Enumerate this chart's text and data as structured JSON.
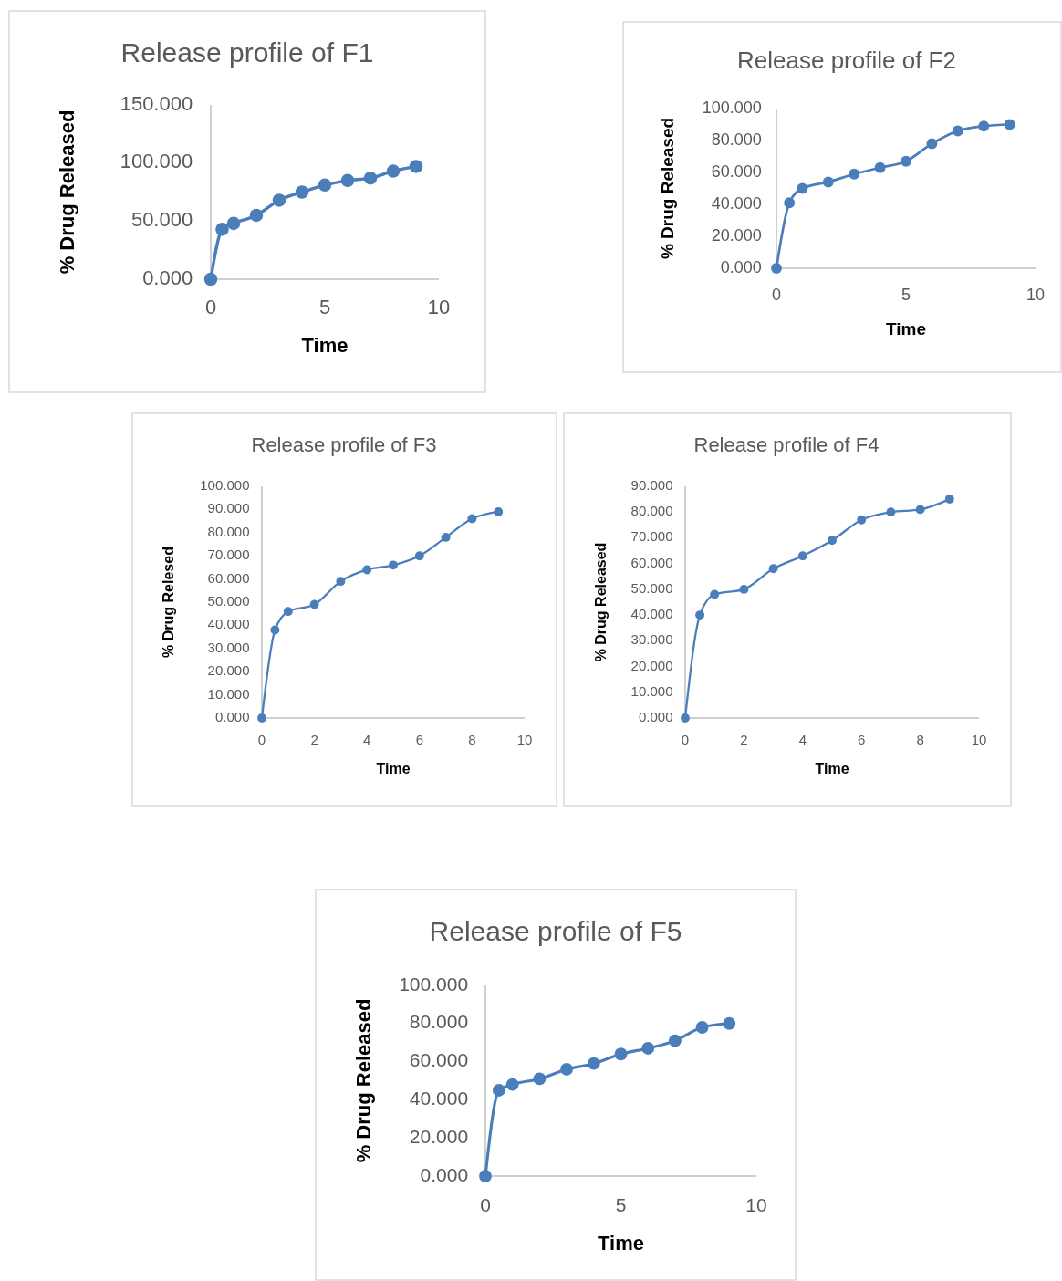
{
  "chart_data": [
    {
      "type": "line",
      "title": "Release profile of F1",
      "xlabel": "Time",
      "ylabel": "% Drug Released",
      "x": [
        0,
        0.5,
        1,
        2,
        3,
        4,
        5,
        6,
        7,
        8,
        9
      ],
      "series": [
        {
          "color": "#4a7ebb",
          "values": [
            0,
            43,
            48,
            55,
            68,
            75,
            81,
            85,
            87,
            93,
            97
          ]
        }
      ],
      "xlim": [
        0,
        10
      ],
      "xticks": [
        0,
        5,
        10
      ],
      "ylim": [
        0,
        150
      ],
      "yticks": [
        {
          "value": 0,
          "label": "0.000"
        },
        {
          "value": 50,
          "label": "50.000"
        },
        {
          "value": 100,
          "label": "100.000"
        },
        {
          "value": 150,
          "label": "150.000"
        }
      ],
      "marker": "circle",
      "grid": false
    },
    {
      "type": "line",
      "title": "Release profile of F2",
      "xlabel": "Time",
      "ylabel": "% Drug Released",
      "x": [
        0,
        0.5,
        1,
        2,
        3,
        4,
        5,
        6,
        7,
        8,
        9
      ],
      "series": [
        {
          "color": "#4a7ebb",
          "values": [
            0,
            41,
            50,
            54,
            59,
            63,
            67,
            78,
            86,
            89,
            90
          ]
        }
      ],
      "xlim": [
        0,
        10
      ],
      "xticks": [
        0,
        5,
        10
      ],
      "ylim": [
        0,
        100
      ],
      "yticks": [
        {
          "value": 0,
          "label": "0.000"
        },
        {
          "value": 20,
          "label": "20.000"
        },
        {
          "value": 40,
          "label": "40.000"
        },
        {
          "value": 60,
          "label": "60.000"
        },
        {
          "value": 80,
          "label": "80.000"
        },
        {
          "value": 100,
          "label": "100.000"
        }
      ],
      "marker": "circle",
      "grid": false
    },
    {
      "type": "line",
      "title": "Release profile of F3",
      "xlabel": "Time",
      "ylabel": "% Drug Relesed",
      "x": [
        0,
        0.5,
        1,
        2,
        3,
        4,
        5,
        6,
        7,
        8,
        9
      ],
      "series": [
        {
          "color": "#4a7ebb",
          "values": [
            0,
            38,
            46,
            49,
            59,
            64,
            66,
            70,
            78,
            86,
            89
          ]
        }
      ],
      "xlim": [
        0,
        10
      ],
      "xticks": [
        0,
        2,
        4,
        6,
        8,
        10
      ],
      "ylim": [
        0,
        100
      ],
      "yticks": [
        {
          "value": 0,
          "label": "0.000"
        },
        {
          "value": 10,
          "label": "10.000"
        },
        {
          "value": 20,
          "label": "20.000"
        },
        {
          "value": 30,
          "label": "30.000"
        },
        {
          "value": 40,
          "label": "40.000"
        },
        {
          "value": 50,
          "label": "50.000"
        },
        {
          "value": 60,
          "label": "60.000"
        },
        {
          "value": 70,
          "label": "70.000"
        },
        {
          "value": 80,
          "label": "80.000"
        },
        {
          "value": 90,
          "label": "90.000"
        },
        {
          "value": 100,
          "label": "100.000"
        }
      ],
      "marker": "circle",
      "grid": false
    },
    {
      "type": "line",
      "title": "Release profile of F4",
      "xlabel": "Time",
      "ylabel": "% Drug Released",
      "x": [
        0,
        0.5,
        1,
        2,
        3,
        4,
        5,
        6,
        7,
        8,
        9
      ],
      "series": [
        {
          "color": "#4a7ebb",
          "values": [
            0,
            40,
            48,
            50,
            58,
            63,
            69,
            77,
            80,
            81,
            85
          ]
        }
      ],
      "xlim": [
        0,
        10
      ],
      "xticks": [
        0,
        2,
        4,
        6,
        8,
        10
      ],
      "ylim": [
        0,
        90
      ],
      "yticks": [
        {
          "value": 0,
          "label": "0.000"
        },
        {
          "value": 10,
          "label": "10.000"
        },
        {
          "value": 20,
          "label": "20.000"
        },
        {
          "value": 30,
          "label": "30.000"
        },
        {
          "value": 40,
          "label": "40.000"
        },
        {
          "value": 50,
          "label": "50.000"
        },
        {
          "value": 60,
          "label": "60.000"
        },
        {
          "value": 70,
          "label": "70.000"
        },
        {
          "value": 80,
          "label": "80.000"
        },
        {
          "value": 90,
          "label": "90.000"
        }
      ],
      "marker": "circle",
      "grid": false
    },
    {
      "type": "line",
      "title": "Release profile of F5",
      "xlabel": "Time",
      "ylabel": "% Drug Released",
      "x": [
        0,
        0.5,
        1,
        2,
        3,
        4,
        5,
        6,
        7,
        8,
        9
      ],
      "series": [
        {
          "color": "#4a7ebb",
          "values": [
            0,
            45,
            48,
            51,
            56,
            59,
            64,
            67,
            71,
            78,
            80
          ]
        }
      ],
      "xlim": [
        0,
        10
      ],
      "xticks": [
        0,
        5,
        10
      ],
      "ylim": [
        0,
        100
      ],
      "yticks": [
        {
          "value": 0,
          "label": "0.000"
        },
        {
          "value": 20,
          "label": "20.000"
        },
        {
          "value": 40,
          "label": "40.000"
        },
        {
          "value": 60,
          "label": "60.000"
        },
        {
          "value": 80,
          "label": "80.000"
        },
        {
          "value": 100,
          "label": "100.000"
        }
      ],
      "marker": "circle",
      "grid": false
    }
  ]
}
